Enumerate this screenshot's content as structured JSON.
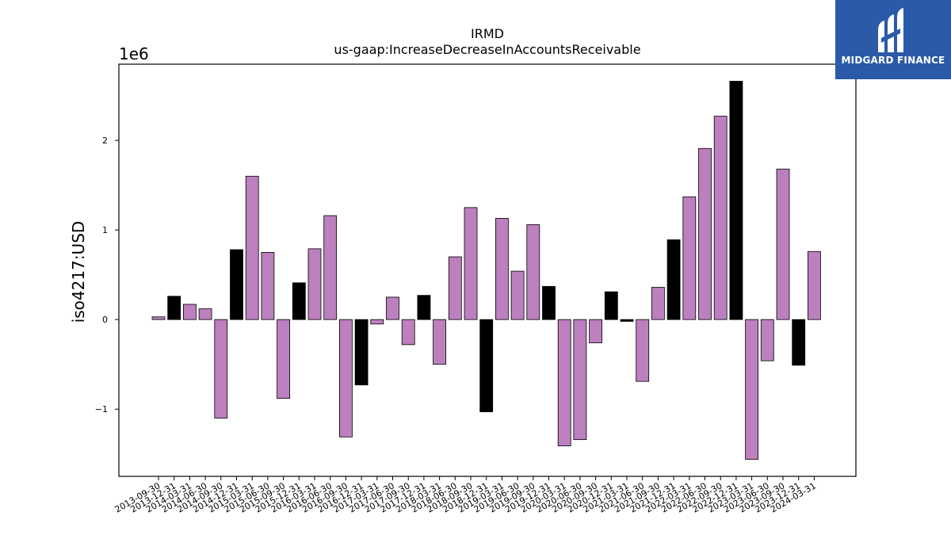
{
  "brand": {
    "name": "MIDGARD FINANCE",
    "bg_color": "#2a5aa8"
  },
  "colors": {
    "bar_default": "#bb80bd",
    "bar_q4": "#000000"
  },
  "chart_data": {
    "type": "bar",
    "title": "IRMD",
    "subtitle": "us-gaap:IncreaseDecreaseInAccountsReceivable",
    "ylabel": "iso4217:USD",
    "xlabel": "",
    "y_scale_label": "1e6",
    "y_ticks": [
      -1,
      0,
      1,
      2
    ],
    "ylim": [
      -1.75,
      2.85
    ],
    "grid": false,
    "categories": [
      "2013-09-30",
      "2013-12-31",
      "2014-03-31",
      "2014-06-30",
      "2014-09-30",
      "2014-12-31",
      "2015-03-31",
      "2015-06-30",
      "2015-09-30",
      "2015-12-31",
      "2016-03-31",
      "2016-06-30",
      "2016-09-30",
      "2016-12-31",
      "2017-03-31",
      "2017-06-30",
      "2017-09-30",
      "2017-12-31",
      "2018-03-31",
      "2018-06-30",
      "2018-09-30",
      "2018-12-31",
      "2019-03-31",
      "2019-06-30",
      "2019-09-30",
      "2019-12-31",
      "2020-03-31",
      "2020-06-30",
      "2020-09-30",
      "2020-12-31",
      "2021-03-31",
      "2021-06-30",
      "2021-09-30",
      "2021-12-31",
      "2022-03-31",
      "2022-06-30",
      "2022-09-30",
      "2022-12-31",
      "2023-03-31",
      "2023-06-30",
      "2023-09-30",
      "2023-12-31",
      "2024-03-31"
    ],
    "values": [
      0.03,
      0.26,
      0.17,
      0.12,
      -1.1,
      0.78,
      1.6,
      0.75,
      -0.88,
      0.41,
      0.79,
      1.16,
      -1.31,
      -0.73,
      -0.05,
      0.25,
      -0.28,
      0.27,
      -0.5,
      0.7,
      1.25,
      -1.03,
      1.13,
      0.54,
      1.06,
      0.37,
      -1.41,
      -1.34,
      -0.26,
      0.31,
      -0.02,
      -0.69,
      0.36,
      0.89,
      1.37,
      1.91,
      2.27,
      2.66,
      -1.56,
      -0.46,
      1.68,
      -0.51,
      0.76
    ],
    "highlight": [
      false,
      true,
      false,
      false,
      false,
      true,
      false,
      false,
      false,
      true,
      false,
      false,
      false,
      true,
      false,
      false,
      false,
      true,
      false,
      false,
      false,
      true,
      false,
      false,
      false,
      true,
      false,
      false,
      false,
      true,
      true,
      false,
      false,
      true,
      false,
      false,
      false,
      true,
      false,
      false,
      false,
      true,
      false
    ]
  }
}
